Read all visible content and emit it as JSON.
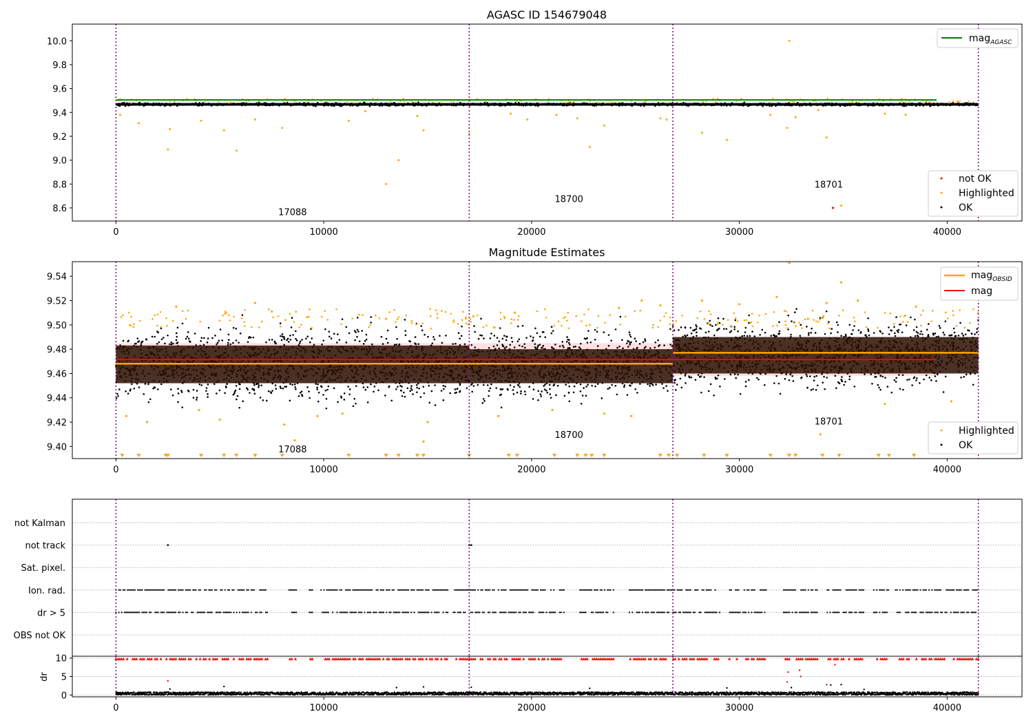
{
  "chart_data": [
    {
      "type": "scatter",
      "title": "AGASC ID 154679048",
      "x": [
        0,
        2500,
        5000,
        7500,
        10000,
        12500,
        15000,
        17000,
        17100,
        19000,
        21000,
        23000,
        25000,
        26800,
        26900,
        29000,
        31000,
        33000,
        35000,
        37000,
        39000,
        41400
      ],
      "xlim": [
        -2100,
        43600
      ],
      "ylim": [
        8.49,
        10.14
      ],
      "xticks": [
        "0",
        "10000",
        "20000",
        "30000",
        "40000"
      ],
      "yticks": [
        "8.6",
        "8.8",
        "9.0",
        "9.2",
        "9.4",
        "9.6",
        "9.8",
        "10.0"
      ],
      "obsid_boundaries": [
        0,
        17000,
        26800,
        41500
      ],
      "obsid_labels": [
        {
          "label": "17088",
          "x": 8500,
          "y": 8.54
        },
        {
          "label": "18700",
          "x": 21800,
          "y": 8.65
        },
        {
          "label": "18701",
          "x": 34300,
          "y": 8.77
        }
      ],
      "mag_agasc": 9.505,
      "series": [
        {
          "name": "OK",
          "color": "#000000",
          "band": [
            9.445,
            9.49
          ]
        },
        {
          "name": "Highlighted",
          "color": "#ffa500",
          "values": [
            [
              200,
              9.38
            ],
            [
              1100,
              9.31
            ],
            [
              2500,
              9.09
            ],
            [
              2600,
              9.26
            ],
            [
              4100,
              9.33
            ],
            [
              5200,
              9.25
            ],
            [
              5800,
              9.08
            ],
            [
              6700,
              9.34
            ],
            [
              8000,
              9.27
            ],
            [
              11200,
              9.33
            ],
            [
              12000,
              9.41
            ],
            [
              13000,
              8.8
            ],
            [
              13600,
              9.0
            ],
            [
              14500,
              9.37
            ],
            [
              14800,
              9.25
            ],
            [
              17000,
              9.22
            ],
            [
              19000,
              9.39
            ],
            [
              19800,
              9.34
            ],
            [
              21200,
              9.38
            ],
            [
              22200,
              9.35
            ],
            [
              22800,
              9.11
            ],
            [
              23500,
              9.29
            ],
            [
              26200,
              9.35
            ],
            [
              26500,
              9.34
            ],
            [
              28200,
              9.23
            ],
            [
              29400,
              9.17
            ],
            [
              31500,
              9.38
            ],
            [
              32300,
              9.27
            ],
            [
              32400,
              10.0
            ],
            [
              32700,
              9.36
            ],
            [
              33800,
              9.42
            ],
            [
              34200,
              9.19
            ],
            [
              34900,
              8.62
            ],
            [
              37000,
              9.39
            ],
            [
              38000,
              9.38
            ]
          ]
        },
        {
          "name": "not OK",
          "color": "#ff0000",
          "values": [
            [
              34500,
              8.6
            ]
          ]
        }
      ],
      "legend_upper": {
        "items": [
          {
            "text": "mag",
            "sub": "AGASC",
            "color": "#008000"
          }
        ],
        "placement": "upper right"
      },
      "legend_lower": {
        "items": [
          {
            "text": "not OK",
            "color": "#ff0000"
          },
          {
            "text": "Highlighted",
            "color": "#ffa500"
          },
          {
            "text": "OK",
            "color": "#000000"
          }
        ],
        "placement": "lower right"
      }
    },
    {
      "type": "scatter",
      "title": "Magnitude Estimates",
      "xlim": [
        -2100,
        43600
      ],
      "ylim": [
        9.39,
        9.552
      ],
      "xticks": [
        "0",
        "10000",
        "20000",
        "30000",
        "40000"
      ],
      "yticks": [
        "9.40",
        "9.42",
        "9.44",
        "9.46",
        "9.48",
        "9.50",
        "9.52",
        "9.54"
      ],
      "obsid_boundaries": [
        0,
        17000,
        26800,
        41500
      ],
      "obsid_labels": [
        {
          "label": "17088",
          "x": 8500,
          "y": 9.395
        },
        {
          "label": "18700",
          "x": 21800,
          "y": 9.407
        },
        {
          "label": "18701",
          "x": 34300,
          "y": 9.418
        }
      ],
      "mag": 9.4715,
      "mag_band": [
        9.458,
        9.485
      ],
      "mag_obsid": [
        {
          "x0": 0,
          "x1": 17000,
          "value": 9.468,
          "spread": [
            9.452,
            9.483
          ]
        },
        {
          "x0": 17000,
          "x1": 26800,
          "value": 9.468,
          "spread": [
            9.452,
            9.48
          ]
        },
        {
          "x0": 26800,
          "x1": 41500,
          "value": 9.477,
          "spread": [
            9.46,
            9.49
          ]
        }
      ],
      "series": [
        {
          "name": "OK",
          "color": "#000000",
          "band_by_segment": [
            [
              9.43,
              9.505
            ],
            [
              9.432,
              9.503
            ],
            [
              9.44,
              9.512
            ]
          ]
        },
        {
          "name": "Highlighted",
          "color": "#ffa500",
          "values": [
            [
              500,
              9.425
            ],
            [
              1500,
              9.42
            ],
            [
              2900,
              9.515
            ],
            [
              4000,
              9.43
            ],
            [
              5000,
              9.422
            ],
            [
              6700,
              9.518
            ],
            [
              7500,
              9.511
            ],
            [
              8100,
              9.418
            ],
            [
              8600,
              9.405
            ],
            [
              9700,
              9.425
            ],
            [
              10900,
              9.427
            ],
            [
              13000,
              9.505
            ],
            [
              14800,
              9.404
            ],
            [
              15000,
              9.42
            ],
            [
              17200,
              9.507
            ],
            [
              18400,
              9.425
            ],
            [
              19200,
              9.51
            ],
            [
              21000,
              9.43
            ],
            [
              23500,
              9.427
            ],
            [
              24200,
              9.514
            ],
            [
              24800,
              9.425
            ],
            [
              25300,
              9.52
            ],
            [
              26200,
              9.516
            ],
            [
              28200,
              9.52
            ],
            [
              30000,
              9.517
            ],
            [
              31800,
              9.523
            ],
            [
              32400,
              9.551
            ],
            [
              33300,
              9.505
            ],
            [
              33900,
              9.41
            ],
            [
              34200,
              9.518
            ],
            [
              34900,
              9.535
            ],
            [
              35700,
              9.52
            ],
            [
              37000,
              9.435
            ],
            [
              38500,
              9.515
            ],
            [
              40200,
              9.437
            ]
          ],
          "clipped_x": [
            300,
            1100,
            2400,
            2500,
            4100,
            5200,
            5800,
            6700,
            8000,
            11200,
            13000,
            13600,
            14500,
            14800,
            17000,
            18900,
            19300,
            21100,
            22200,
            22600,
            22900,
            23500,
            26200,
            26600,
            27000,
            28300,
            29400,
            31500,
            32400,
            32700,
            34000,
            34800,
            36700,
            37200,
            38400
          ]
        }
      ],
      "legend_upper": {
        "items": [
          {
            "text": "mag",
            "sub": "OBSID",
            "color": "#ffa500"
          },
          {
            "text": "mag",
            "color": "#ff0000"
          }
        ],
        "placement": "upper right"
      },
      "legend_lower": {
        "items": [
          {
            "text": "Highlighted",
            "color": "#ffa500"
          },
          {
            "text": "OK",
            "color": "#000000"
          }
        ],
        "placement": "lower right"
      }
    },
    {
      "type": "scatter",
      "xlim": [
        -2100,
        43600
      ],
      "xticks": [
        "0",
        "10000",
        "20000",
        "30000",
        "40000"
      ],
      "obsid_boundaries": [
        0,
        17000,
        26800,
        41500
      ],
      "categories": [
        "not Kalman",
        "not track",
        "Sat. pixel.",
        "Ion. rad.",
        "dr > 5",
        "OBS not OK"
      ],
      "flags": {
        "not track": [
          2500,
          17000,
          17100
        ],
        "Ion. rad.": {
          "gaps": [
            [
              7300,
              8300
            ],
            [
              8700,
              9300
            ],
            [
              9500,
              9800
            ],
            [
              16000,
              16200
            ],
            [
              21600,
              22300
            ],
            [
              24000,
              24700
            ],
            [
              29100,
              29500
            ],
            [
              31300,
              32100
            ],
            [
              33800,
              34200
            ],
            [
              36000,
              36400
            ],
            [
              37200,
              37500
            ]
          ]
        },
        "dr > 5": {
          "gaps": [
            [
              7300,
              8300
            ],
            [
              8700,
              9300
            ],
            [
              9500,
              9800
            ],
            [
              16000,
              16200
            ],
            [
              21600,
              22300
            ],
            [
              24000,
              24700
            ],
            [
              29100,
              29500
            ],
            [
              31300,
              32100
            ],
            [
              33800,
              34200
            ],
            [
              36000,
              36400
            ],
            [
              37200,
              37500
            ]
          ]
        }
      }
    },
    {
      "type": "scatter",
      "ylabel": "dr",
      "xlim": [
        -2100,
        43600
      ],
      "ylim": [
        -0.5,
        10.5
      ],
      "xticks": [
        "0",
        "10000",
        "20000",
        "30000",
        "40000"
      ],
      "yticks": [
        "0",
        "5",
        "10"
      ],
      "obsid_boundaries": [
        0,
        17000,
        26800,
        41500
      ],
      "series": [
        {
          "name": "dr",
          "color": "#000000",
          "band": [
            0,
            0.8
          ],
          "outliers": [
            [
              2600,
              1.6
            ],
            [
              5200,
              2.3
            ],
            [
              13500,
              2.0
            ],
            [
              14800,
              2.2
            ],
            [
              17100,
              2.1
            ],
            [
              22800,
              1.8
            ],
            [
              29400,
              1.9
            ],
            [
              32500,
              2.0
            ],
            [
              34400,
              2.7
            ],
            [
              34900,
              2.8
            ],
            [
              36000,
              1.5
            ]
          ]
        },
        {
          "name": "dr > 5 (clipped)",
          "color": "#ff0000",
          "clipped_value": 9.8,
          "values": [
            [
              2500,
              3.8
            ],
            [
              32300,
              3.5
            ],
            [
              32350,
              6.2
            ],
            [
              32900,
              6.7
            ],
            [
              32950,
              5.0
            ],
            [
              34200,
              2.8
            ],
            [
              34600,
              8.2
            ]
          ]
        }
      ]
    }
  ]
}
